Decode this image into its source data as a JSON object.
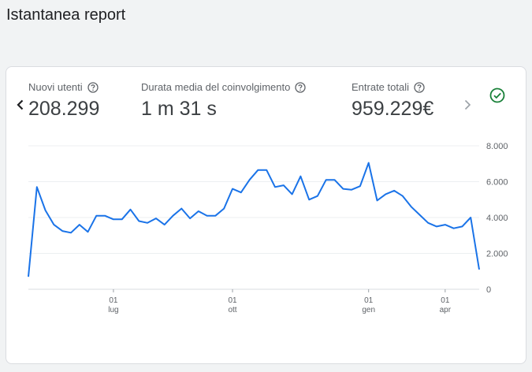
{
  "page": {
    "title": "Istantanea report"
  },
  "metrics": [
    {
      "label": "Nuovi utenti",
      "value": "208.299"
    },
    {
      "label": "Durata media del coinvolgimento",
      "value": "1 m 31 s"
    },
    {
      "label": "Entrate totali",
      "value": "959.229€"
    }
  ],
  "icons": {
    "prev": "chevron-left-icon",
    "next": "chevron-right-icon",
    "help": "question-circle-icon",
    "status": "check-circle-icon"
  },
  "colors": {
    "line": "#1a73e8",
    "status": "#188038"
  },
  "chart_data": {
    "type": "line",
    "series": [
      {
        "values": [
          700,
          5700,
          4400,
          3600,
          3250,
          3150,
          3600,
          3200,
          4100,
          4100,
          3900,
          3900,
          4450,
          3800,
          3700,
          3950,
          3600,
          4100,
          4500,
          3950,
          4350,
          4100,
          4100,
          4500,
          5600,
          5400,
          6100,
          6650,
          6650,
          5700,
          5800,
          5300,
          6300,
          5000,
          5200,
          6100,
          6100,
          5600,
          5550,
          5750,
          7050,
          4950,
          5300,
          5500,
          5200,
          4600,
          4150,
          3700,
          3500,
          3600,
          3400,
          3500,
          4000,
          1100
        ]
      }
    ],
    "x_ticks": [
      {
        "day": "01",
        "month": "lug",
        "index": 10
      },
      {
        "day": "01",
        "month": "ott",
        "index": 24
      },
      {
        "day": "01",
        "month": "gen",
        "index": 40
      },
      {
        "day": "01",
        "month": "apr",
        "index": 49
      }
    ],
    "y_ticks": [
      "8.000",
      "6.000",
      "4.000",
      "2.000",
      "0"
    ],
    "y_tick_values": [
      8000,
      6000,
      4000,
      2000,
      0
    ],
    "ylim": [
      0,
      8000
    ],
    "grid": true
  }
}
